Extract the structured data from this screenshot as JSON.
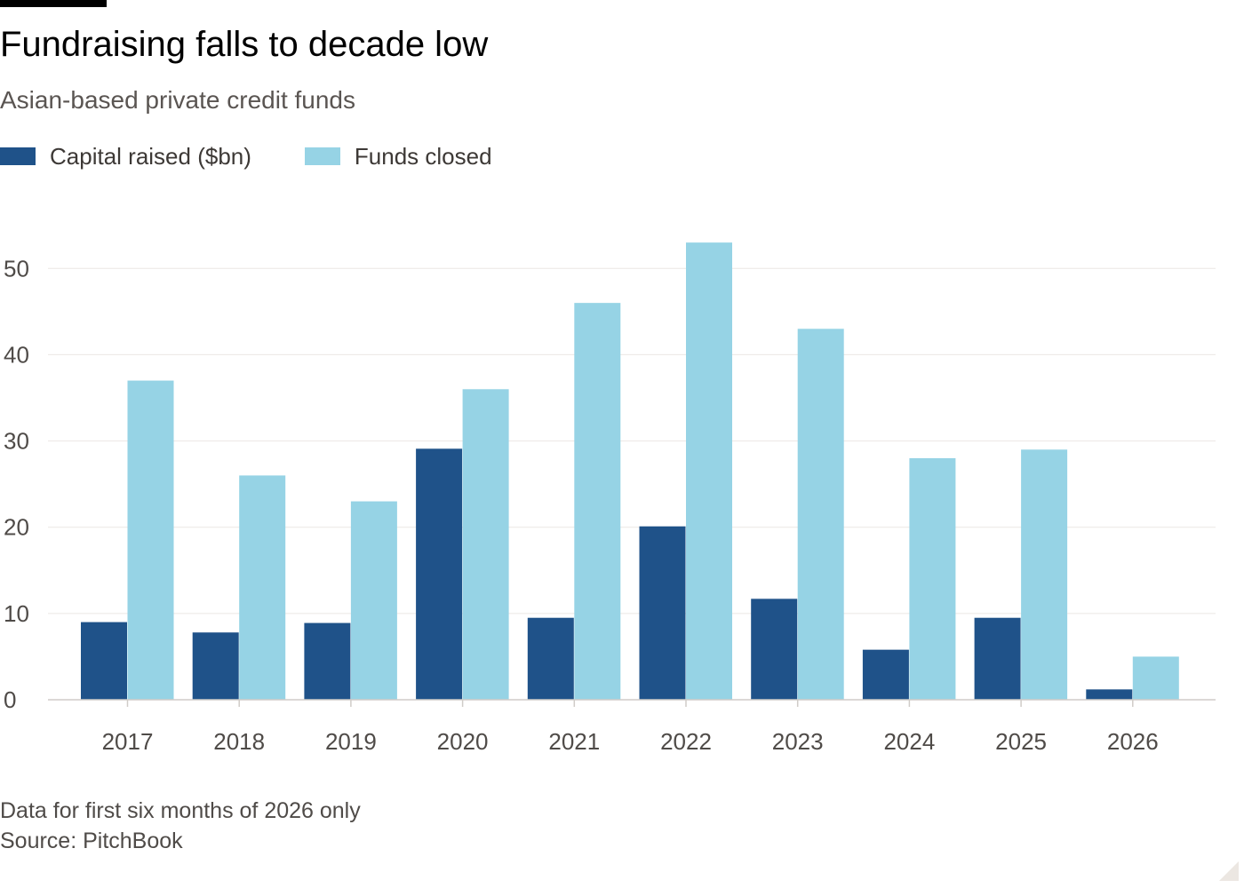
{
  "header": {
    "title": "Fundraising falls to decade low",
    "subtitle": "Asian-based private credit funds"
  },
  "legend": {
    "capital_label": "Capital raised ($bn)",
    "funds_label": "Funds closed"
  },
  "colors": {
    "capital": "#1f5289",
    "funds": "#96d3e5",
    "grid": "#ebe7e4",
    "baseline": "#d0ccc8"
  },
  "footer": {
    "note": "Data for first six months of 2026 only",
    "source": "Source: PitchBook"
  },
  "chart_data": {
    "type": "bar",
    "title": "Fundraising falls to decade low",
    "subtitle": "Asian-based private credit funds",
    "xlabel": "",
    "ylabel": "",
    "categories": [
      "2017",
      "2018",
      "2019",
      "2020",
      "2021",
      "2022",
      "2023",
      "2024",
      "2025",
      "2026"
    ],
    "series": [
      {
        "name": "Capital raised ($bn)",
        "values": [
          9,
          7.8,
          8.9,
          29.1,
          9.5,
          20.1,
          11.7,
          5.8,
          9.5,
          1.2
        ]
      },
      {
        "name": "Funds closed",
        "values": [
          37,
          26,
          23,
          36,
          46,
          53,
          43,
          28,
          29,
          5
        ]
      }
    ],
    "ylim": [
      0,
      56
    ],
    "yticks": [
      0,
      10,
      20,
      30,
      40,
      50
    ],
    "grid": true,
    "legend": "top-left"
  }
}
